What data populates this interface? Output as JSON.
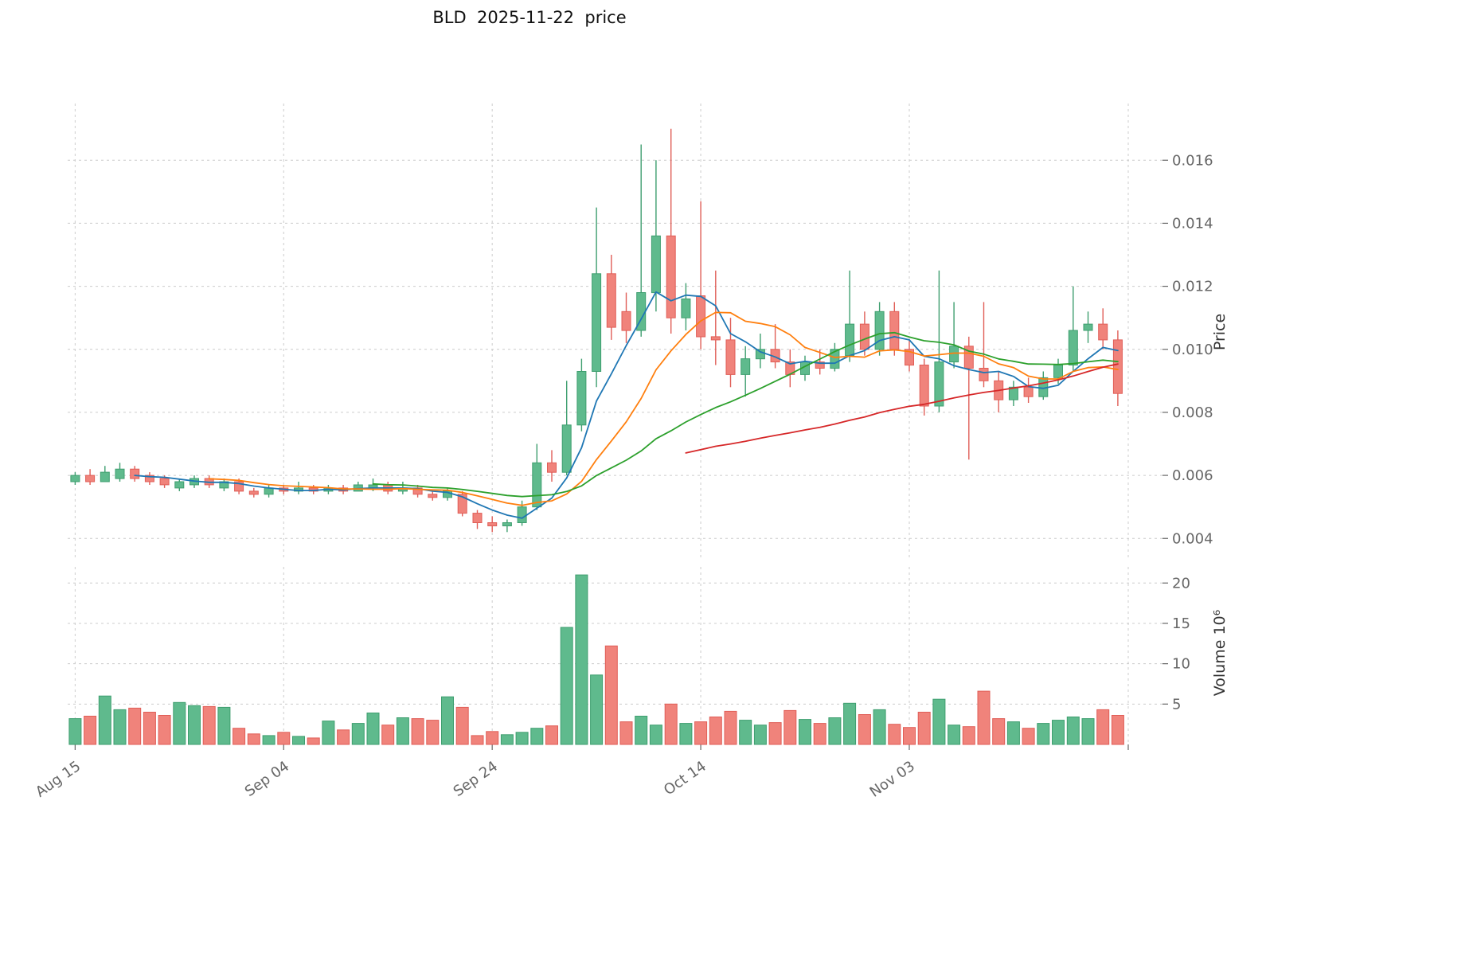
{
  "chart_data": {
    "type": "candlestick",
    "title": "BLD  2025-11-22  price",
    "axes": {
      "price_label": "Price",
      "volume_label": "Volume 10⁶",
      "price_ticks": [
        "0.004",
        "0.006",
        "0.008",
        "0.010",
        "0.012",
        "0.014",
        "0.016"
      ],
      "price_tick_values": [
        0.004,
        0.006,
        0.008,
        0.01,
        0.012,
        0.014,
        0.016
      ],
      "volume_ticks": [
        "5",
        "10",
        "15",
        "20"
      ],
      "volume_tick_values": [
        5,
        10,
        15,
        20
      ],
      "x_ticks": [
        {
          "label": "Aug 15",
          "index": 0
        },
        {
          "label": "Sep 04",
          "index": 14
        },
        {
          "label": "Sep 24",
          "index": 28
        },
        {
          "label": "Oct 14",
          "index": 42
        },
        {
          "label": "Nov 03",
          "index": 56
        },
        {
          "label": "",
          "index": 70.7
        }
      ],
      "price_range": [
        0.0034,
        0.0178
      ],
      "volume_range": [
        0,
        22
      ],
      "x_range": [
        -0.5,
        73.0
      ],
      "grid": true
    },
    "moving_averages": [
      {
        "name": "ma-short",
        "period": 5,
        "color": "#1f77b4"
      },
      {
        "name": "ma-mid",
        "period": 10,
        "color": "#ff7f0e"
      },
      {
        "name": "ma-long",
        "period": 21,
        "color": "#2ca02c"
      },
      {
        "name": "ma-longest",
        "period": 42,
        "color": "#d62728"
      }
    ],
    "colors": {
      "up": "#5fba8d",
      "up_edge": "#3e9e6f",
      "down": "#f0837b",
      "down_edge": "#e05e57",
      "grid": "#cccccc",
      "tick_text": "#666666",
      "axis_text": "#333333",
      "title_text": "#111111",
      "background": "#ffffff"
    },
    "ohlcv_columns": [
      "open",
      "high",
      "low",
      "close",
      "volume_millions"
    ],
    "ohlcv": [
      [
        0.0058,
        0.0061,
        0.0057,
        0.006,
        3.2
      ],
      [
        0.006,
        0.0062,
        0.0057,
        0.0058,
        3.5
      ],
      [
        0.0058,
        0.0063,
        0.0058,
        0.0061,
        6.0
      ],
      [
        0.0059,
        0.0064,
        0.0058,
        0.0062,
        4.3
      ],
      [
        0.0062,
        0.0063,
        0.0058,
        0.0059,
        4.5
      ],
      [
        0.006,
        0.0061,
        0.0057,
        0.0058,
        4.0
      ],
      [
        0.0059,
        0.006,
        0.0056,
        0.0057,
        3.6
      ],
      [
        0.0056,
        0.0059,
        0.0055,
        0.0058,
        5.2
      ],
      [
        0.0057,
        0.006,
        0.0056,
        0.0059,
        4.8
      ],
      [
        0.0059,
        0.006,
        0.0056,
        0.0057,
        4.7
      ],
      [
        0.0056,
        0.0059,
        0.0055,
        0.0058,
        4.6
      ],
      [
        0.0058,
        0.0059,
        0.0054,
        0.0055,
        2.0
      ],
      [
        0.0055,
        0.0056,
        0.0053,
        0.0054,
        1.3
      ],
      [
        0.0054,
        0.0057,
        0.0053,
        0.0056,
        1.1
      ],
      [
        0.0056,
        0.0057,
        0.0054,
        0.0055,
        1.5
      ],
      [
        0.0055,
        0.0058,
        0.0054,
        0.0056,
        1.0
      ],
      [
        0.0056,
        0.0057,
        0.0054,
        0.0055,
        0.8
      ],
      [
        0.0055,
        0.0057,
        0.0054,
        0.0056,
        2.9
      ],
      [
        0.0056,
        0.0057,
        0.0054,
        0.0055,
        1.8
      ],
      [
        0.0055,
        0.0058,
        0.0055,
        0.0057,
        2.6
      ],
      [
        0.0056,
        0.0059,
        0.0055,
        0.0057,
        3.9
      ],
      [
        0.0057,
        0.0058,
        0.0054,
        0.0055,
        2.4
      ],
      [
        0.0055,
        0.0058,
        0.0054,
        0.0056,
        3.3
      ],
      [
        0.0056,
        0.0057,
        0.0053,
        0.0054,
        3.2
      ],
      [
        0.0054,
        0.0055,
        0.0052,
        0.0053,
        3.0
      ],
      [
        0.0053,
        0.0056,
        0.0052,
        0.0055,
        5.9
      ],
      [
        0.0054,
        0.0055,
        0.0047,
        0.0048,
        4.6
      ],
      [
        0.0048,
        0.0049,
        0.0043,
        0.0045,
        1.1
      ],
      [
        0.0045,
        0.0047,
        0.0042,
        0.0044,
        1.6
      ],
      [
        0.0044,
        0.0046,
        0.0042,
        0.0045,
        1.2
      ],
      [
        0.0045,
        0.0052,
        0.0044,
        0.005,
        1.5
      ],
      [
        0.005,
        0.007,
        0.0049,
        0.0064,
        2.0
      ],
      [
        0.0064,
        0.0068,
        0.0058,
        0.0061,
        2.3
      ],
      [
        0.0061,
        0.009,
        0.006,
        0.0076,
        14.5
      ],
      [
        0.0076,
        0.0097,
        0.0074,
        0.0093,
        21.0
      ],
      [
        0.0093,
        0.0145,
        0.0088,
        0.0124,
        8.6
      ],
      [
        0.0124,
        0.013,
        0.0103,
        0.0107,
        12.2
      ],
      [
        0.0112,
        0.0118,
        0.0102,
        0.0106,
        2.8
      ],
      [
        0.0106,
        0.0165,
        0.0104,
        0.0118,
        3.5
      ],
      [
        0.0118,
        0.016,
        0.0112,
        0.0136,
        2.4
      ],
      [
        0.0136,
        0.017,
        0.0105,
        0.011,
        5.0
      ],
      [
        0.011,
        0.0121,
        0.0106,
        0.0116,
        2.6
      ],
      [
        0.0117,
        0.0147,
        0.01,
        0.0104,
        2.8
      ],
      [
        0.0104,
        0.0125,
        0.0095,
        0.0103,
        3.4
      ],
      [
        0.0103,
        0.011,
        0.0088,
        0.0092,
        4.1
      ],
      [
        0.0092,
        0.0101,
        0.0085,
        0.0097,
        3.0
      ],
      [
        0.0097,
        0.0105,
        0.0094,
        0.01,
        2.4
      ],
      [
        0.01,
        0.0108,
        0.0094,
        0.0096,
        2.7
      ],
      [
        0.0096,
        0.01,
        0.0088,
        0.0092,
        4.2
      ],
      [
        0.0092,
        0.0098,
        0.009,
        0.0096,
        3.1
      ],
      [
        0.0096,
        0.01,
        0.0092,
        0.0094,
        2.6
      ],
      [
        0.0094,
        0.0102,
        0.0093,
        0.01,
        3.3
      ],
      [
        0.0098,
        0.0125,
        0.0096,
        0.0108,
        5.1
      ],
      [
        0.0108,
        0.0112,
        0.0098,
        0.01,
        3.7
      ],
      [
        0.01,
        0.0115,
        0.0098,
        0.0112,
        4.3
      ],
      [
        0.0112,
        0.0115,
        0.0098,
        0.01,
        2.5
      ],
      [
        0.01,
        0.0103,
        0.0093,
        0.0095,
        2.1
      ],
      [
        0.0095,
        0.0097,
        0.0079,
        0.0082,
        4.0
      ],
      [
        0.0082,
        0.0125,
        0.008,
        0.0096,
        5.6
      ],
      [
        0.0096,
        0.0115,
        0.0094,
        0.0101,
        2.4
      ],
      [
        0.0101,
        0.0104,
        0.0065,
        0.0094,
        2.2
      ],
      [
        0.0094,
        0.0115,
        0.0088,
        0.009,
        6.6
      ],
      [
        0.009,
        0.0093,
        0.008,
        0.0084,
        3.2
      ],
      [
        0.0084,
        0.009,
        0.0082,
        0.0088,
        2.8
      ],
      [
        0.0088,
        0.0091,
        0.0083,
        0.0085,
        2.0
      ],
      [
        0.0085,
        0.0093,
        0.0084,
        0.0091,
        2.6
      ],
      [
        0.0091,
        0.0097,
        0.0089,
        0.0095,
        3.0
      ],
      [
        0.0095,
        0.012,
        0.0093,
        0.0106,
        3.4
      ],
      [
        0.0106,
        0.0112,
        0.0102,
        0.0108,
        3.2
      ],
      [
        0.0108,
        0.0113,
        0.01,
        0.0103,
        4.3
      ],
      [
        0.0103,
        0.0106,
        0.0082,
        0.0086,
        3.6
      ]
    ]
  }
}
